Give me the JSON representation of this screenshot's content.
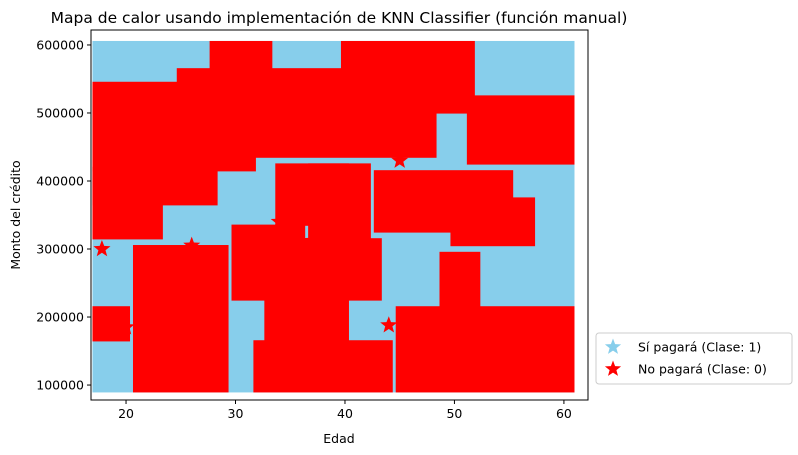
{
  "chart_data": {
    "type": "heatmap",
    "title": "Mapa de calor usando implementación de KNN Classifier (función manual)",
    "xlabel": "Edad",
    "ylabel": "Monto del crédito",
    "xlim": [
      16.8,
      62.2
    ],
    "ylim": [
      78000,
      622000
    ],
    "xticks": [
      20,
      30,
      40,
      50,
      60
    ],
    "yticks": [
      100000,
      200000,
      300000,
      400000,
      500000,
      600000
    ],
    "ytick_labels": [
      "100000",
      "200000",
      "300000",
      "400000",
      "500000",
      "600000"
    ],
    "grid": false,
    "legend_position": "outside-lower-right",
    "x_range": [
      17.3,
      60.6
    ],
    "y_range": [
      95000,
      600000
    ],
    "marker": "star",
    "legend": [
      {
        "label": "Sí pagará (Clase: 1)",
        "class": 1,
        "color": "#87ceeb"
      },
      {
        "label": "No pagará (Clase: 0)",
        "class": 0,
        "color": "#ff0000"
      }
    ],
    "class_regions": [
      {
        "class": 0,
        "x": [
          17.3,
          31.5
        ],
        "y": [
          420000,
          540000
        ]
      },
      {
        "class": 0,
        "x": [
          25,
          48
        ],
        "y": [
          440000,
          560000
        ]
      },
      {
        "class": 0,
        "x": [
          28,
          33
        ],
        "y": [
          570000,
          600000
        ]
      },
      {
        "class": 0,
        "x": [
          40,
          51.5
        ],
        "y": [
          505000,
          600000
        ]
      },
      {
        "class": 0,
        "x": [
          51.5,
          60.6
        ],
        "y": [
          430000,
          520000
        ]
      },
      {
        "class": 0,
        "x": [
          17.3,
          23
        ],
        "y": [
          320000,
          415000
        ]
      },
      {
        "class": 0,
        "x": [
          17.3,
          28
        ],
        "y": [
          370000,
          415000
        ]
      },
      {
        "class": 0,
        "x": [
          34,
          40
        ],
        "y": [
          340000,
          420000
        ]
      },
      {
        "class": 0,
        "x": [
          37,
          42
        ],
        "y": [
          310000,
          420000
        ]
      },
      {
        "class": 0,
        "x": [
          43,
          55
        ],
        "y": [
          330000,
          410000
        ]
      },
      {
        "class": 0,
        "x": [
          50,
          57
        ],
        "y": [
          310000,
          370000
        ]
      },
      {
        "class": 0,
        "x": [
          21,
          29
        ],
        "y": [
          95000,
          300000
        ]
      },
      {
        "class": 0,
        "x": [
          30,
          36
        ],
        "y": [
          230000,
          330000
        ]
      },
      {
        "class": 0,
        "x": [
          36,
          43
        ],
        "y": [
          230000,
          310000
        ]
      },
      {
        "class": 0,
        "x": [
          33,
          40
        ],
        "y": [
          160000,
          240000
        ]
      },
      {
        "class": 0,
        "x": [
          32,
          44
        ],
        "y": [
          95000,
          160000
        ]
      },
      {
        "class": 0,
        "x": [
          45,
          60.6
        ],
        "y": [
          95000,
          210000
        ]
      },
      {
        "class": 0,
        "x": [
          49,
          52
        ],
        "y": [
          210000,
          290000
        ]
      },
      {
        "class": 0,
        "x": [
          17.3,
          20
        ],
        "y": [
          170000,
          210000
        ]
      }
    ],
    "points": [
      {
        "class": 0,
        "x": 17.8,
        "y": 300000
      },
      {
        "class": 0,
        "x": 24,
        "y": 101000
      },
      {
        "class": 0,
        "x": 34,
        "y": 340000
      },
      {
        "class": 0,
        "x": 44,
        "y": 188000
      },
      {
        "class": 0,
        "x": 36,
        "y": 245000
      },
      {
        "class": 0,
        "x": 26,
        "y": 305000
      },
      {
        "class": 0,
        "x": 45,
        "y": 430000
      },
      {
        "class": 0,
        "x": 33,
        "y": 148000
      },
      {
        "class": 0,
        "x": 37,
        "y": 312000
      },
      {
        "class": 0,
        "x": 20,
        "y": 185000
      },
      {
        "class": 0,
        "x": 27,
        "y": 125000
      }
    ]
  }
}
